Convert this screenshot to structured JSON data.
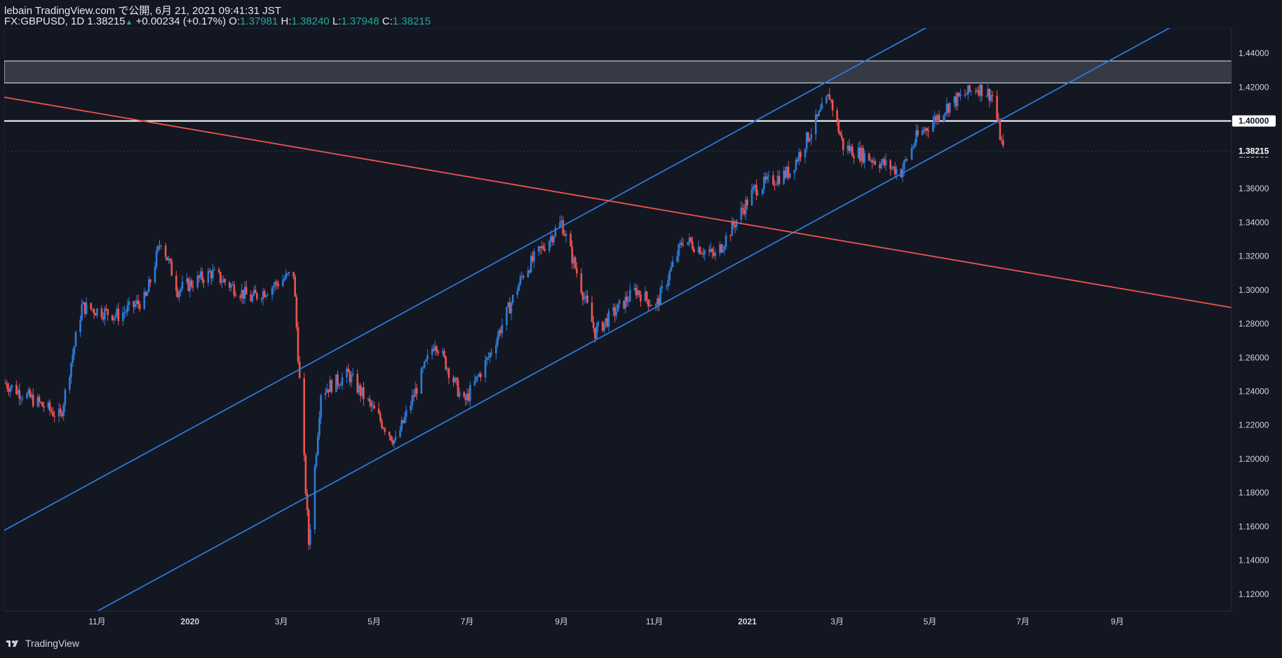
{
  "header": {
    "line1": "lebain TradingView.com で公開, 6月 21, 2021 09:41:31 JST",
    "symbol": "FX:GBPUSD, 1D",
    "last": "1.38215",
    "change": "+0.00234 (+0.17%)",
    "o_label": "O:",
    "o": "1.37981",
    "h_label": "H:",
    "h": "1.38240",
    "l_label": "L:",
    "l": "1.37948",
    "c_label": "C:",
    "c": "1.38215"
  },
  "footer": {
    "brand": "TradingView"
  },
  "colors": {
    "bg": "#131722",
    "up": "#2e7bd6",
    "down": "#ef5350",
    "channel": "#2a7ad8",
    "red_line": "#ef5350",
    "axis_text": "#d1d4dc",
    "zone": "#363a45",
    "level": "#ffffff"
  },
  "chart_data": {
    "type": "candlestick",
    "symbol": "GBPUSD",
    "timeframe": "1D",
    "ylim": [
      1.11,
      1.455
    ],
    "y_ticks": [
      "1.44000",
      "1.42000",
      "1.40000",
      "1.38000",
      "1.36000",
      "1.34000",
      "1.32000",
      "1.30000",
      "1.28000",
      "1.26000",
      "1.24000",
      "1.22000",
      "1.20000",
      "1.18000",
      "1.16000",
      "1.14000",
      "1.12000"
    ],
    "x_ticks": [
      {
        "label": "11月",
        "t": "2019-11"
      },
      {
        "label": "2020",
        "t": "2020-01"
      },
      {
        "label": "3月",
        "t": "2020-03"
      },
      {
        "label": "5月",
        "t": "2020-05"
      },
      {
        "label": "7月",
        "t": "2020-07"
      },
      {
        "label": "9月",
        "t": "2020-09"
      },
      {
        "label": "11月",
        "t": "2020-11"
      },
      {
        "label": "2021",
        "t": "2021-01"
      },
      {
        "label": "3月",
        "t": "2021-03"
      },
      {
        "label": "5月",
        "t": "2021-05"
      },
      {
        "label": "7月",
        "t": "2021-07"
      },
      {
        "label": "9月",
        "t": "2021-09"
      }
    ],
    "price_key_points": [
      [
        "2019-09-01",
        1.245
      ],
      [
        "2019-09-20",
        1.235
      ],
      [
        "2019-10-08",
        1.225
      ],
      [
        "2019-10-22",
        1.29
      ],
      [
        "2019-11-15",
        1.285
      ],
      [
        "2019-12-03",
        1.295
      ],
      [
        "2019-12-13",
        1.33
      ],
      [
        "2019-12-24",
        1.3
      ],
      [
        "2020-01-15",
        1.31
      ],
      [
        "2020-02-10",
        1.295
      ],
      [
        "2020-02-20",
        1.3
      ],
      [
        "2020-03-09",
        1.31
      ],
      [
        "2020-03-19",
        1.15
      ],
      [
        "2020-03-27",
        1.24
      ],
      [
        "2020-04-14",
        1.25
      ],
      [
        "2020-05-15",
        1.21
      ],
      [
        "2020-06-10",
        1.27
      ],
      [
        "2020-06-29",
        1.233
      ],
      [
        "2020-07-15",
        1.26
      ],
      [
        "2020-08-07",
        1.31
      ],
      [
        "2020-09-01",
        1.34
      ],
      [
        "2020-09-23",
        1.275
      ],
      [
        "2020-10-20",
        1.3
      ],
      [
        "2020-11-02",
        1.29
      ],
      [
        "2020-11-20",
        1.33
      ],
      [
        "2020-12-11",
        1.32
      ],
      [
        "2021-01-06",
        1.36
      ],
      [
        "2021-01-29",
        1.37
      ],
      [
        "2021-02-24",
        1.415
      ],
      [
        "2021-03-05",
        1.385
      ],
      [
        "2021-04-12",
        1.37
      ],
      [
        "2021-04-22",
        1.39
      ],
      [
        "2021-05-14",
        1.41
      ],
      [
        "2021-06-01",
        1.42
      ],
      [
        "2021-06-11",
        1.415
      ],
      [
        "2021-06-18",
        1.38215
      ]
    ],
    "levels": [
      {
        "name": "resistance-zone",
        "from": 1.4225,
        "to": 1.4355
      },
      {
        "name": "level-1.40000",
        "value": 1.4,
        "label": "1.40000"
      }
    ],
    "last_price": {
      "value": 1.38215,
      "label": "1.38215"
    },
    "trendlines": [
      {
        "name": "channel-upper",
        "color": "blue",
        "p1": [
          "2020-03-19",
          1.256
        ],
        "p2": [
          "2021-02-24",
          1.424
        ]
      },
      {
        "name": "channel-lower",
        "color": "blue",
        "p1": [
          "2020-03-19",
          1.178
        ],
        "p2": [
          "2021-06-15",
          1.4
        ]
      },
      {
        "name": "long-term-downtrend",
        "color": "red",
        "p1": [
          "2019-12-01",
          1.4
        ],
        "p2": [
          "2021-01-25",
          1.335
        ]
      }
    ]
  }
}
